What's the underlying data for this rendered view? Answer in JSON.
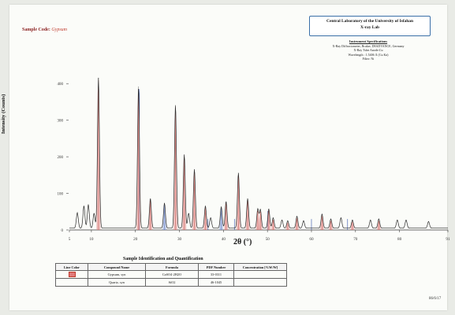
{
  "header": {
    "sample_label": "Sample Code:",
    "sample_value": "Gypsum",
    "lab_title_1": "Central Laboratory of the University of Isfahan",
    "lab_title_2": "X-ray Lab",
    "spec_heading": "Instrument Specifications",
    "spec_lines": [
      "X-Ray Diffractometer, Bruker, D8ADVANCE, Germany",
      "X-Ray Tube Anode:Cu",
      "Wavelength : 1.5406 Å (Cu Ka)",
      "Filter: Ni"
    ]
  },
  "chart_data": {
    "type": "line",
    "title": "",
    "xlabel": "2θ (°)",
    "ylabel": "Intensity (Counts)",
    "xlim": [
      5,
      91
    ],
    "ylim": [
      0,
      465
    ],
    "x_ticks": [
      5,
      10,
      20,
      30,
      40,
      50,
      60,
      70,
      80,
      91
    ],
    "x_tick_labels": [
      "5",
      "10",
      "20",
      "30",
      "40",
      "50",
      "60",
      "70",
      "80",
      "91"
    ],
    "y_ticks": [
      0,
      100,
      200,
      300,
      400
    ],
    "y_tick_labels": [
      "0",
      "100",
      "200",
      "300",
      "400"
    ],
    "grid": false,
    "series_color": "#2b2b2b",
    "peaks": [
      {
        "x": 6.8,
        "y": 42
      },
      {
        "x": 8.3,
        "y": 60
      },
      {
        "x": 9.3,
        "y": 64
      },
      {
        "x": 10.6,
        "y": 40
      },
      {
        "x": 11.6,
        "y": 410
      },
      {
        "x": 20.7,
        "y": 385
      },
      {
        "x": 23.4,
        "y": 80
      },
      {
        "x": 26.6,
        "y": 68
      },
      {
        "x": 29.1,
        "y": 335
      },
      {
        "x": 31.1,
        "y": 200
      },
      {
        "x": 32.1,
        "y": 40
      },
      {
        "x": 33.4,
        "y": 160
      },
      {
        "x": 35.9,
        "y": 60
      },
      {
        "x": 37.1,
        "y": 28
      },
      {
        "x": 39.5,
        "y": 58
      },
      {
        "x": 40.6,
        "y": 72
      },
      {
        "x": 43.4,
        "y": 150
      },
      {
        "x": 45.5,
        "y": 80
      },
      {
        "x": 47.8,
        "y": 52
      },
      {
        "x": 48.4,
        "y": 50
      },
      {
        "x": 50.3,
        "y": 52
      },
      {
        "x": 51.3,
        "y": 28
      },
      {
        "x": 53.3,
        "y": 22
      },
      {
        "x": 54.6,
        "y": 20
      },
      {
        "x": 56.7,
        "y": 32
      },
      {
        "x": 58.2,
        "y": 20
      },
      {
        "x": 62.4,
        "y": 38
      },
      {
        "x": 64.4,
        "y": 25
      },
      {
        "x": 66.7,
        "y": 28
      },
      {
        "x": 69.3,
        "y": 22
      },
      {
        "x": 73.4,
        "y": 22
      },
      {
        "x": 75.3,
        "y": 25
      },
      {
        "x": 79.5,
        "y": 22
      },
      {
        "x": 81.5,
        "y": 22
      },
      {
        "x": 86.6,
        "y": 18
      }
    ],
    "reference_lines": [
      {
        "phase": "Gypsum",
        "color": "#c0392b",
        "positions": [
          11.6,
          20.7,
          23.4,
          29.1,
          31.1,
          33.4,
          35.9,
          40.6,
          43.4,
          45.5,
          47.8,
          48.4,
          50.3,
          51.3,
          54.6,
          56.7,
          62.4,
          64.4,
          69.3,
          75.3
        ]
      },
      {
        "phase": "Quartz",
        "color": "#2e4fa8",
        "positions": [
          20.9,
          26.6,
          36.5,
          39.5,
          42.5,
          50.1,
          60.0,
          68.2
        ]
      }
    ]
  },
  "table": {
    "title": "Sample Identification and Quantification",
    "headers": [
      "Line Color",
      "Compound Name",
      "Formula",
      "PDF Number",
      "Concentration [%W/W]"
    ],
    "rows": [
      {
        "compound": "Gypsum, syn",
        "formula": "CaSO4·2H2O",
        "pdf": "33-0311",
        "conc": "",
        "swatch": "#e07a7a"
      },
      {
        "compound": "Quartz, syn",
        "formula": "SiO2",
        "pdf": "46-1045",
        "conc": "",
        "swatch": ""
      }
    ]
  },
  "footer": {
    "date": "86/6/17"
  }
}
